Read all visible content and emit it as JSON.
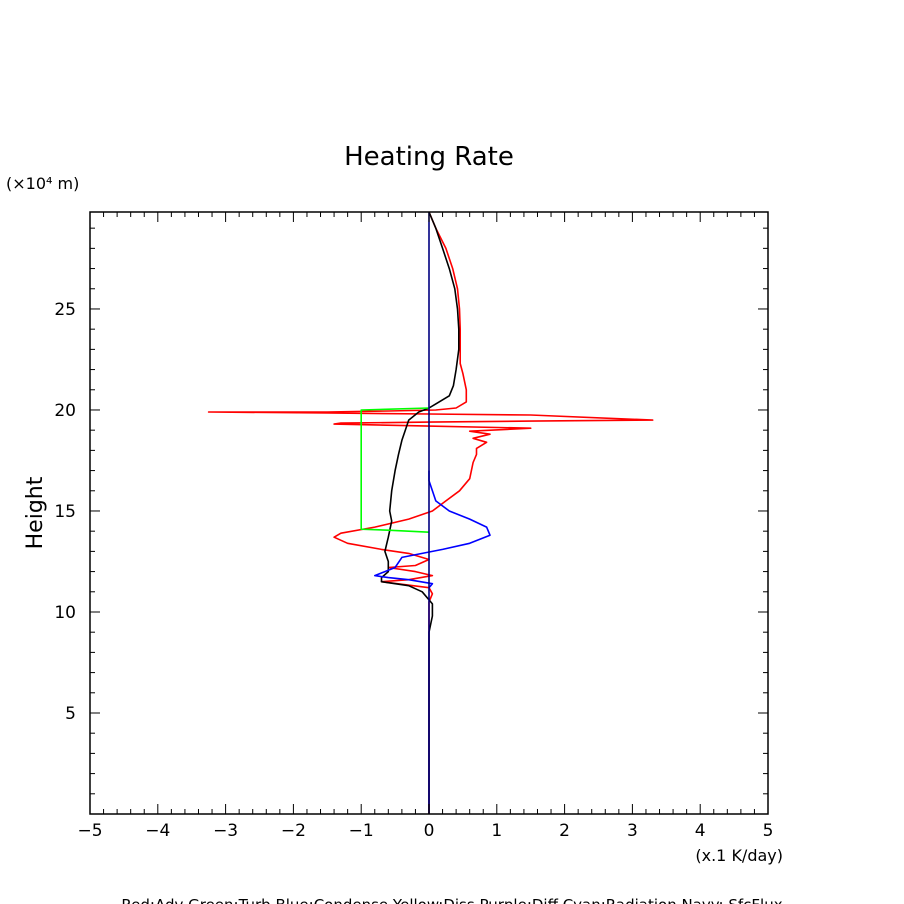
{
  "chart_data": {
    "type": "line",
    "title": "Heating Rate",
    "ylabel": "Height",
    "yunit": "(×10⁴ m)",
    "xunit": "(x.1 K/day)",
    "xlim": [
      -5,
      5
    ],
    "ylim": [
      0,
      29.8
    ],
    "xticks": [
      -5,
      -4,
      -3,
      -2,
      -1,
      0,
      1,
      2,
      3,
      4,
      5
    ],
    "xtick_labels": [
      "−5",
      "−4",
      "−3",
      "−2",
      "−1",
      "0",
      "1",
      "2",
      "3",
      "4",
      "5"
    ],
    "yticks": [
      5,
      10,
      15,
      20,
      25
    ],
    "ytick_labels": [
      "5",
      "10",
      "15",
      "20",
      "25"
    ],
    "grid": false,
    "legend": "Red:Adv  Green:Turb  Blue:Condense  Yellow:Diss  Purple:Diff  Cyan:Radiation  Navy: SfcFlux",
    "series": [
      {
        "color": "#ff0000",
        "points": [
          [
            0,
            29.8
          ],
          [
            0.1,
            29
          ],
          [
            0.25,
            28
          ],
          [
            0.35,
            27
          ],
          [
            0.42,
            26
          ],
          [
            0.45,
            25
          ],
          [
            0.46,
            24
          ],
          [
            0.46,
            23
          ],
          [
            0.46,
            22.3
          ],
          [
            0.5,
            21.8
          ],
          [
            0.55,
            21
          ],
          [
            0.55,
            20.4
          ],
          [
            0.4,
            20.1
          ],
          [
            0.1,
            20.0
          ],
          [
            -0.6,
            19.95
          ],
          [
            -1.5,
            19.9
          ],
          [
            -3.25,
            19.9
          ],
          [
            -1.5,
            19.85
          ],
          [
            0,
            19.8
          ],
          [
            1.5,
            19.75
          ],
          [
            3.3,
            19.5
          ],
          [
            1.5,
            19.45
          ],
          [
            0,
            19.4
          ],
          [
            -1.3,
            19.35
          ],
          [
            -1.4,
            19.3
          ],
          [
            0,
            19.2
          ],
          [
            1.5,
            19.1
          ],
          [
            0.6,
            18.95
          ],
          [
            0.9,
            18.8
          ],
          [
            0.65,
            18.6
          ],
          [
            0.85,
            18.4
          ],
          [
            0.7,
            18.1
          ],
          [
            0.7,
            17.8
          ],
          [
            0.65,
            17.4
          ],
          [
            0.6,
            16.6
          ],
          [
            0.45,
            16.0
          ],
          [
            0.25,
            15.5
          ],
          [
            0.05,
            15.0
          ],
          [
            -0.3,
            14.6
          ],
          [
            -0.8,
            14.2
          ],
          [
            -1.3,
            13.9
          ],
          [
            -1.4,
            13.7
          ],
          [
            -1.2,
            13.4
          ],
          [
            -0.7,
            13.1
          ],
          [
            -0.3,
            12.9
          ],
          [
            0,
            12.6
          ],
          [
            -0.2,
            12.3
          ],
          [
            -0.6,
            12.2
          ],
          [
            -0.2,
            12.0
          ],
          [
            0.05,
            11.8
          ],
          [
            -0.3,
            11.6
          ],
          [
            -0.7,
            11.5
          ],
          [
            0,
            11.2
          ],
          [
            0.05,
            10.9
          ],
          [
            0,
            10.5
          ],
          [
            0,
            9
          ],
          [
            0,
            0
          ]
        ]
      },
      {
        "color": "#000000",
        "points": [
          [
            0,
            29.8
          ],
          [
            0.1,
            29
          ],
          [
            0.2,
            28
          ],
          [
            0.3,
            27
          ],
          [
            0.38,
            26
          ],
          [
            0.42,
            25
          ],
          [
            0.44,
            24
          ],
          [
            0.44,
            23
          ],
          [
            0.4,
            22
          ],
          [
            0.36,
            21.2
          ],
          [
            0.3,
            20.7
          ],
          [
            0.1,
            20.3
          ],
          [
            0,
            20.1
          ],
          [
            -0.15,
            19.9
          ],
          [
            -0.3,
            19.5
          ],
          [
            -0.35,
            19.0
          ],
          [
            -0.4,
            18.5
          ],
          [
            -0.45,
            17.8
          ],
          [
            -0.5,
            17.0
          ],
          [
            -0.55,
            16.0
          ],
          [
            -0.58,
            15.0
          ],
          [
            -0.55,
            14.5
          ],
          [
            -0.6,
            13.7
          ],
          [
            -0.65,
            13.0
          ],
          [
            -0.6,
            12.5
          ],
          [
            -0.6,
            12.0
          ],
          [
            -0.7,
            11.7
          ],
          [
            -0.7,
            11.5
          ],
          [
            -0.3,
            11.3
          ],
          [
            -0.1,
            11.0
          ],
          [
            0.05,
            10.4
          ],
          [
            0.05,
            9.8
          ],
          [
            0,
            9.0
          ],
          [
            0,
            0
          ]
        ]
      },
      {
        "color": "#00ff00",
        "points": [
          [
            0,
            20.1
          ],
          [
            -1.0,
            20.0
          ],
          [
            -1.0,
            14.1
          ],
          [
            -0.6,
            14.05
          ],
          [
            0,
            13.95
          ]
        ]
      },
      {
        "color": "#0000ff",
        "points": [
          [
            0,
            17.0
          ],
          [
            0,
            16.5
          ],
          [
            0.05,
            16.0
          ],
          [
            0.1,
            15.5
          ],
          [
            0.3,
            15.0
          ],
          [
            0.6,
            14.6
          ],
          [
            0.85,
            14.2
          ],
          [
            0.9,
            13.8
          ],
          [
            0.6,
            13.4
          ],
          [
            0.2,
            13.1
          ],
          [
            -0.1,
            12.9
          ],
          [
            -0.4,
            12.7
          ],
          [
            -0.5,
            12.2
          ],
          [
            -0.65,
            12.0
          ],
          [
            -0.8,
            11.8
          ],
          [
            -0.6,
            11.7
          ],
          [
            -0.3,
            11.6
          ],
          [
            0.05,
            11.4
          ],
          [
            0,
            11.2
          ]
        ]
      },
      {
        "color": "#000080",
        "points": [
          [
            0,
            29.8
          ],
          [
            0,
            0
          ]
        ]
      }
    ]
  }
}
